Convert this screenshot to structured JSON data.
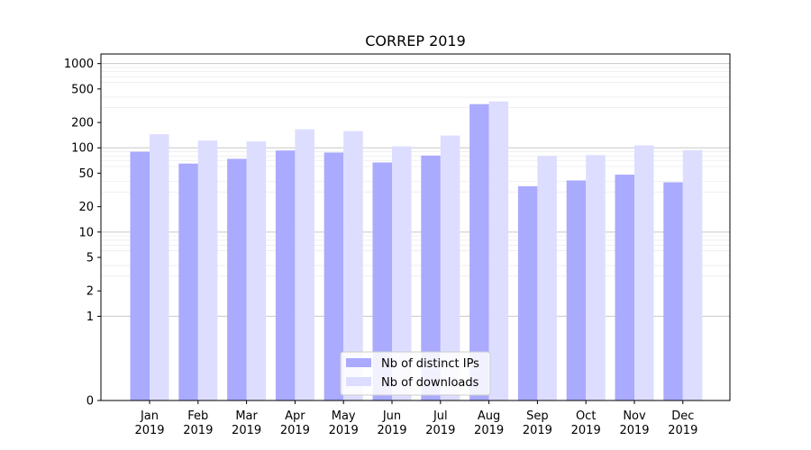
{
  "chart_data": {
    "type": "bar",
    "title": "CORREP 2019",
    "xlabel": "",
    "ylabel": "",
    "yscale": "symlog",
    "ylim": [
      0,
      1300
    ],
    "yticks": [
      0,
      1,
      2,
      5,
      10,
      20,
      50,
      100,
      200,
      500,
      1000
    ],
    "ytick_labels": [
      "0",
      "1",
      "2",
      "5",
      "10",
      "20",
      "50",
      "100",
      "200",
      "500",
      "1000"
    ],
    "grid": true,
    "legend_position": "bottom-center",
    "categories": [
      "Jan\n2019",
      "Feb\n2019",
      "Mar\n2019",
      "Apr\n2019",
      "May\n2019",
      "Jun\n2019",
      "Jul\n2019",
      "Aug\n2019",
      "Sep\n2019",
      "Oct\n2019",
      "Nov\n2019",
      "Dec\n2019"
    ],
    "category_labels": [
      [
        "Jan",
        "2019"
      ],
      [
        "Feb",
        "2019"
      ],
      [
        "Mar",
        "2019"
      ],
      [
        "Apr",
        "2019"
      ],
      [
        "May",
        "2019"
      ],
      [
        "Jun",
        "2019"
      ],
      [
        "Jul",
        "2019"
      ],
      [
        "Aug",
        "2019"
      ],
      [
        "Sep",
        "2019"
      ],
      [
        "Oct",
        "2019"
      ],
      [
        "Nov",
        "2019"
      ],
      [
        "Dec",
        "2019"
      ]
    ],
    "series": [
      {
        "name": "Nb of distinct IPs",
        "color": "#aaaaff",
        "values": [
          90,
          65,
          74,
          93,
          88,
          67,
          81,
          330,
          35,
          41,
          48,
          39
        ]
      },
      {
        "name": "Nb of downloads",
        "color": "#ddddff",
        "values": [
          145,
          122,
          119,
          166,
          158,
          104,
          140,
          355,
          80,
          82,
          107,
          94
        ]
      }
    ]
  }
}
